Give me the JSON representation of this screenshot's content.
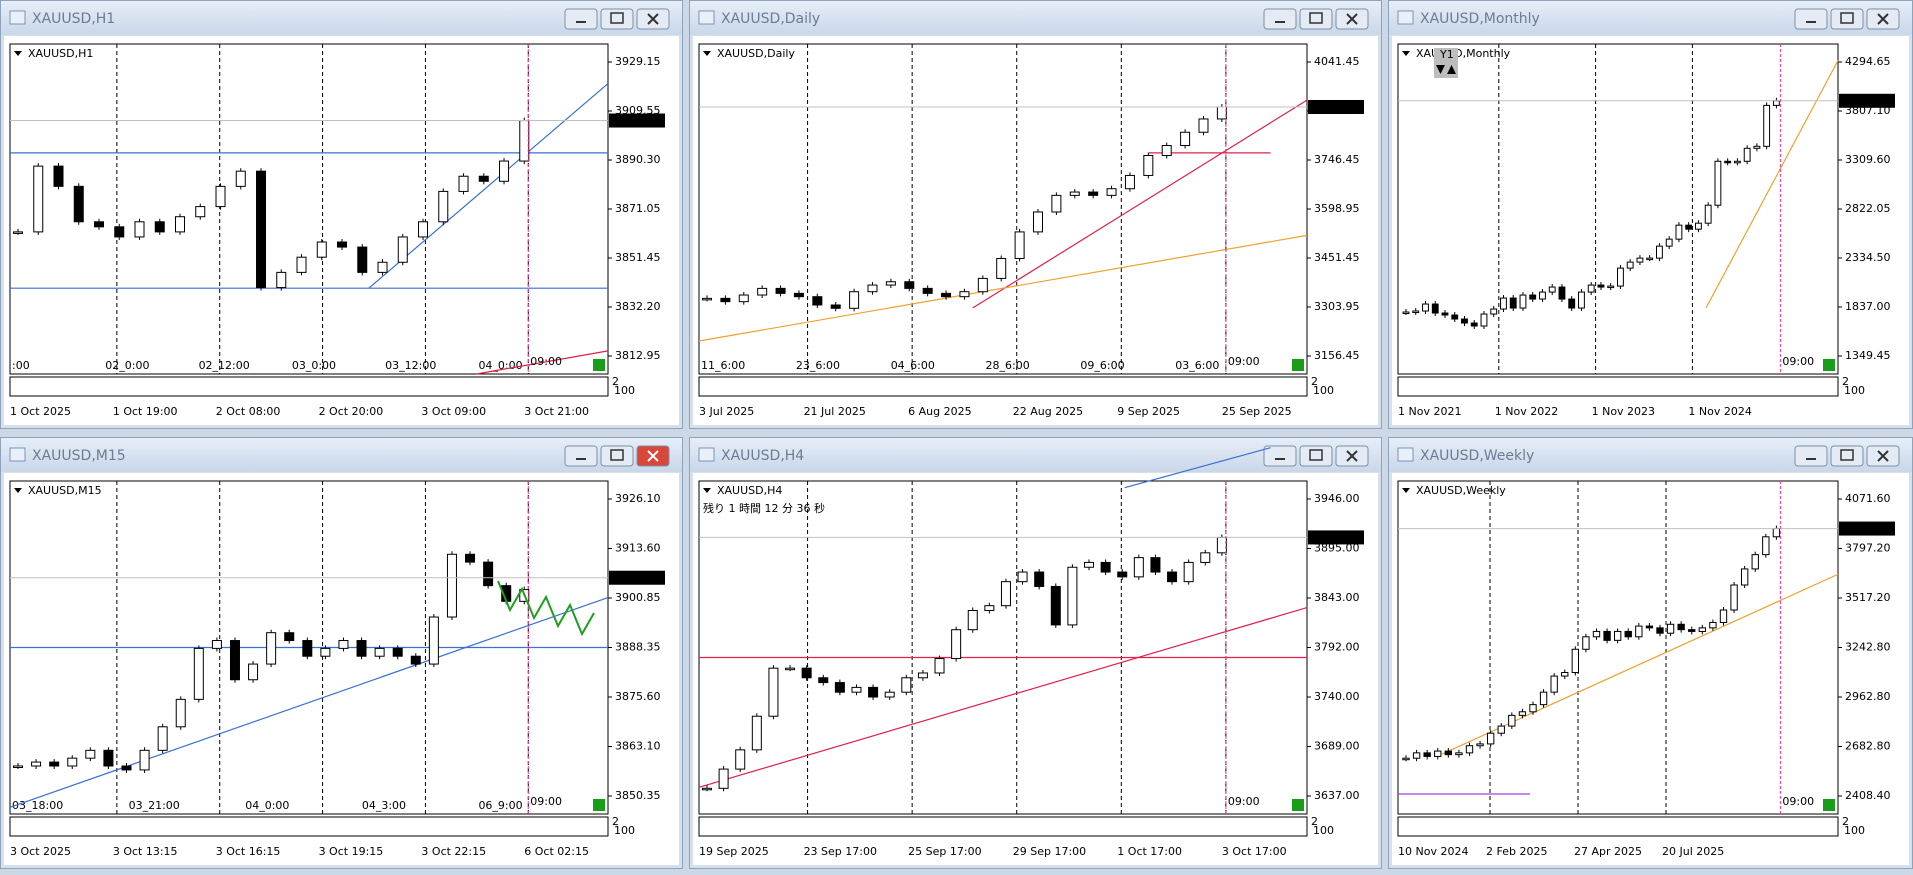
{
  "windows": [
    {
      "title": "XAUUSD,H1",
      "label": "XAUUSD,H1",
      "price_ticks": [
        "3929.15",
        "3909.55",
        "3890.30",
        "3871.05",
        "3851.45",
        "3832.20",
        "3812.95"
      ],
      "current_price": "3906.02",
      "time_labels": [
        "1 Oct 2025",
        "1 Oct 19:00",
        "2 Oct 08:00",
        "2 Oct 20:00",
        "3 Oct 09:00",
        "3 Oct 21:00"
      ],
      "grid_labels": [
        ":00",
        "02_0:00",
        "02_12:00",
        "03_0:00",
        "03_12:00",
        "04_0:00"
      ],
      "session": "09:00",
      "corner": [
        "2",
        "100"
      ],
      "prices": [
        3862,
        3888,
        3880,
        3866,
        3864,
        3860,
        3866,
        3862,
        3868,
        3872,
        3880,
        3886,
        3840,
        3846,
        3852,
        3858,
        3856,
        3846,
        3850,
        3860,
        3866,
        3878,
        3884,
        3882,
        3890,
        3906
      ]
    },
    {
      "title": "XAUUSD,Daily",
      "label": "XAUUSD,Daily",
      "price_ticks": [
        "4041.45",
        "3893.95",
        "3746.45",
        "3598.95",
        "3451.45",
        "3303.95",
        "3156.45"
      ],
      "current_price": "3906.02",
      "time_labels": [
        "3 Jul 2025",
        "21 Jul 2025",
        "6 Aug 2025",
        "22 Aug 2025",
        "9 Sep 2025",
        "25 Sep 2025"
      ],
      "grid_labels": [
        "11_6:00",
        "23_6:00",
        "04_6:00",
        "28_6:00",
        "09_6:00",
        "03_6:00"
      ],
      "session": "09:00",
      "corner": [
        "2",
        "100"
      ],
      "prices": [
        3330,
        3320,
        3340,
        3360,
        3345,
        3335,
        3310,
        3300,
        3350,
        3370,
        3380,
        3360,
        3345,
        3335,
        3350,
        3390,
        3450,
        3530,
        3590,
        3640,
        3650,
        3640,
        3660,
        3700,
        3760,
        3790,
        3830,
        3870,
        3906
      ]
    },
    {
      "title": "XAUUSD,Monthly",
      "label": "XAUUSD,Monthly",
      "indicator": "Y1",
      "price_ticks": [
        "4294.65",
        "3807.10",
        "3309.60",
        "2822.05",
        "2334.50",
        "1837.00",
        "1349.45"
      ],
      "current_price": "3906.02",
      "time_labels": [
        "1 Nov 2021",
        "1 Nov 2022",
        "1 Nov 2023",
        "1 Nov 2024"
      ],
      "grid_labels": [],
      "session": "09:00",
      "corner": [
        "2",
        "100"
      ],
      "prices": [
        1790,
        1800,
        1870,
        1780,
        1760,
        1720,
        1680,
        1650,
        1770,
        1820,
        1930,
        1830,
        1960,
        1920,
        1990,
        2040,
        1920,
        1830,
        1990,
        2060,
        2040,
        2050,
        2230,
        2290,
        2330,
        2330,
        2450,
        2520,
        2660,
        2620,
        2680,
        2860,
        3300,
        3290,
        3300,
        3430,
        3450,
        3860,
        3906
      ]
    },
    {
      "title": "XAUUSD,M15",
      "label": "XAUUSD,M15",
      "price_ticks": [
        "3926.10",
        "3913.60",
        "3900.85",
        "3888.35",
        "3875.60",
        "3863.10",
        "3850.35"
      ],
      "current_price": "3906.02",
      "time_labels": [
        "3 Oct 2025",
        "3 Oct 13:15",
        "3 Oct 16:15",
        "3 Oct 19:15",
        "3 Oct 22:15",
        "6 Oct 02:15"
      ],
      "grid_labels": [
        "03_18:00",
        "03_21:00",
        "04_0:00",
        "04_3:00",
        "06_9:00"
      ],
      "session": "09:00",
      "corner": [
        "2",
        "100"
      ],
      "prices": [
        3858,
        3859,
        3858,
        3860,
        3862,
        3858,
        3857,
        3862,
        3868,
        3875,
        3888,
        3890,
        3880,
        3884,
        3892,
        3890,
        3886,
        3888,
        3890,
        3886,
        3888,
        3886,
        3884,
        3896,
        3912,
        3910,
        3904,
        3900,
        3903
      ]
    },
    {
      "title": "XAUUSD,H4",
      "label": "XAUUSD,H4",
      "countdown": "残り 1 時間 12 分 36 秒",
      "price_ticks": [
        "3946.00",
        "3895.00",
        "3843.00",
        "3792.00",
        "3740.00",
        "3689.00",
        "3637.00"
      ],
      "current_price": "3906.02",
      "time_labels": [
        "19 Sep 2025",
        "23 Sep 17:00",
        "25 Sep 17:00",
        "29 Sep 17:00",
        "1 Oct 17:00",
        "3 Oct 17:00"
      ],
      "grid_labels": [],
      "session": "09:00",
      "corner": [
        "2",
        "100"
      ],
      "prices": [
        3645,
        3665,
        3685,
        3720,
        3770,
        3770,
        3760,
        3755,
        3745,
        3750,
        3740,
        3745,
        3760,
        3765,
        3780,
        3810,
        3830,
        3835,
        3860,
        3870,
        3855,
        3815,
        3875,
        3880,
        3870,
        3865,
        3885,
        3870,
        3860,
        3880,
        3890,
        3906
      ]
    },
    {
      "title": "XAUUSD,Weekly",
      "label": "XAUUSD,Weekly",
      "price_ticks": [
        "4071.60",
        "3797.20",
        "3517.20",
        "3242.80",
        "2962.80",
        "2682.80",
        "2408.40"
      ],
      "current_price": "3906.02",
      "time_labels": [
        "10 Nov 2024",
        "2 Feb 2025",
        "27 Apr 2025",
        "20 Jul 2025"
      ],
      "grid_labels": [],
      "session": "09:00",
      "corner": [
        "2",
        "100"
      ],
      "prices": [
        2620,
        2650,
        2630,
        2660,
        2640,
        2650,
        2690,
        2700,
        2760,
        2800,
        2860,
        2880,
        2920,
        2990,
        3080,
        3100,
        3230,
        3300,
        3330,
        3280,
        3330,
        3300,
        3360,
        3350,
        3320,
        3370,
        3340,
        3330,
        3350,
        3380,
        3450,
        3590,
        3680,
        3760,
        3860,
        3906
      ]
    }
  ]
}
